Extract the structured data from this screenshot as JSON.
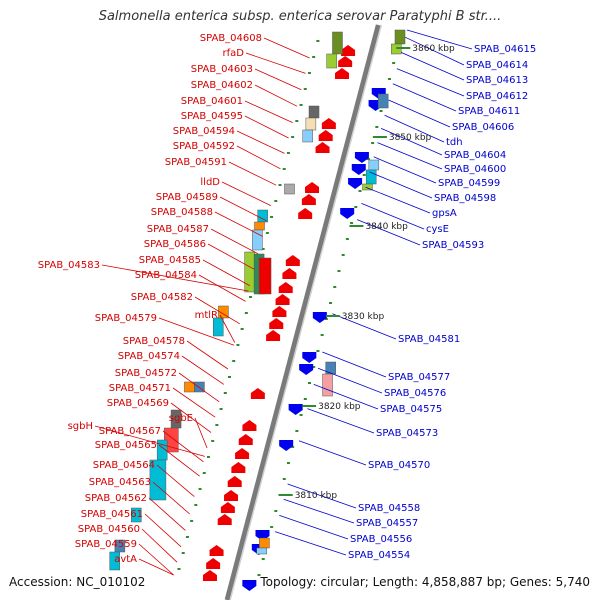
{
  "title": "Salmonella enterica subsp. enterica serovar Paratyphi B str....",
  "footer": {
    "accession": "Accession: NC_010102",
    "topology": "Topology: circular; Length: 4,858,887 bp; Genes: 5,740"
  },
  "kbp_labels": [
    "3860 kbp",
    "3850 kbp",
    "3840 kbp",
    "3830 kbp",
    "3820 kbp",
    "3810 kbp"
  ],
  "colors": {
    "reverse_strand_label": "#d40000",
    "forward_strand_label": "#0000cc",
    "backbone": "#888888",
    "tick": "#2e8b2e"
  },
  "left_genes": [
    "SPAB_04608",
    "rfaD",
    "SPAB_04603",
    "SPAB_04602",
    "SPAB_04601",
    "SPAB_04595",
    "SPAB_04594",
    "SPAB_04592",
    "SPAB_04591",
    "lldD",
    "SPAB_04589",
    "SPAB_04588",
    "SPAB_04587",
    "SPAB_04586",
    "SPAB_04585",
    "SPAB_04583",
    "SPAB_04584",
    "SPAB_04582",
    "SPAB_04579",
    "mtlR",
    "SPAB_04578",
    "SPAB_04574",
    "SPAB_04572",
    "SPAB_04571",
    "SPAB_04569",
    "sgbE",
    "sgbH",
    "SPAB_04567",
    "SPAB_04565",
    "SPAB_04564",
    "SPAB_04563",
    "SPAB_04562",
    "SPAB_04561",
    "SPAB_04560",
    "SPAB_04559",
    "avtA"
  ],
  "right_genes": [
    "SPAB_04615",
    "SPAB_04614",
    "SPAB_04613",
    "SPAB_04612",
    "SPAB_04611",
    "SPAB_04606",
    "tdh",
    "SPAB_04604",
    "SPAB_04600",
    "SPAB_04599",
    "SPAB_04598",
    "gpsA",
    "cysE",
    "SPAB_04593",
    "SPAB_04581",
    "SPAB_04577",
    "SPAB_04576",
    "SPAB_04575",
    "SPAB_04573",
    "SPAB_04570",
    "SPAB_04558",
    "SPAB_04557",
    "SPAB_04556",
    "SPAB_04554"
  ]
}
